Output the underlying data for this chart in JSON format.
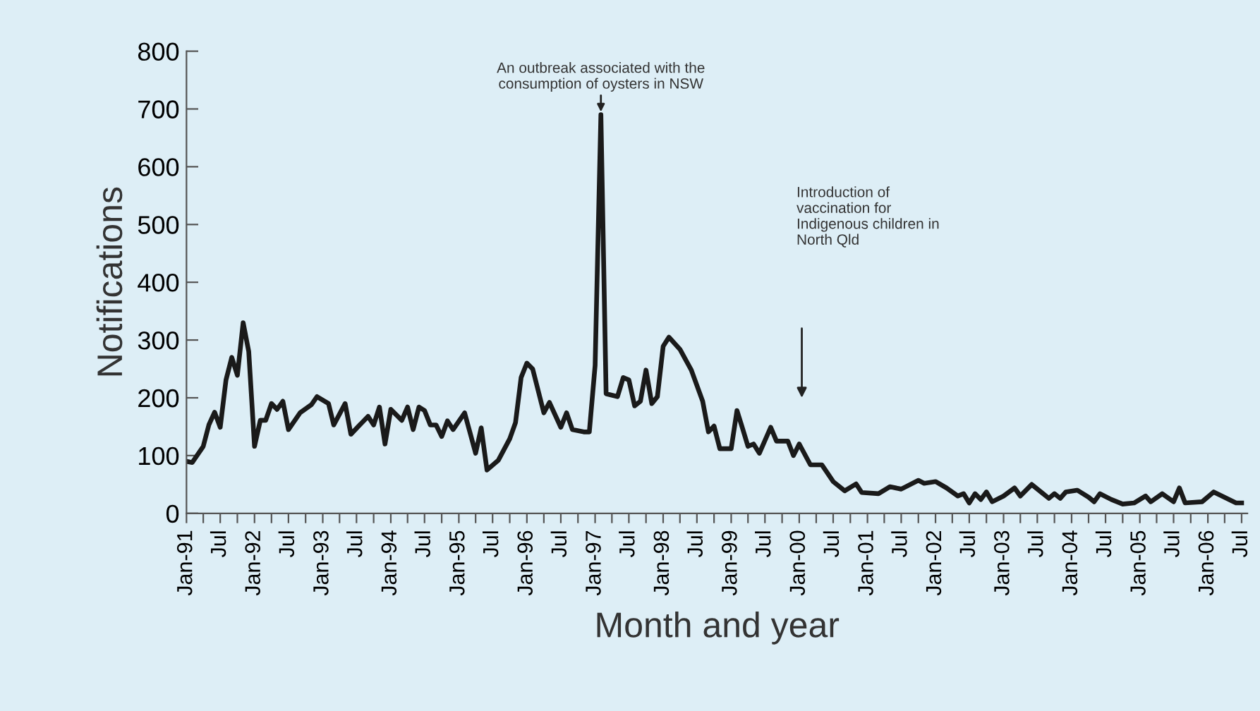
{
  "chart_data": {
    "type": "line",
    "xlabel": "Month and year",
    "ylabel": "Notifications",
    "annotations": [
      {
        "text": "An outbreak associated with the\nconsumption of oysters in NSW",
        "x": "1997-02",
        "y": 690
      },
      "Introduction of\nvaccination for\nIndigenous children in\nNorth Qld"
    ],
    "series": [
      {
        "color": "#1a1a1a",
        "x": [
          "1991-01",
          "1991-02",
          "1991-04",
          "1991-05",
          "1991-06",
          "1991-07",
          "1991-08",
          "1991-09",
          "1991-10",
          "1991-11",
          "1991-12",
          "1992-01",
          "1992-02",
          "1992-03",
          "1992-04",
          "1992-05",
          "1992-06",
          "1992-07",
          "1992-09",
          "1992-11",
          "1992-12",
          "1993-02",
          "1993-03",
          "1993-05",
          "1993-06",
          "1993-09",
          "1993-10",
          "1993-11",
          "1993-12",
          "1994-01",
          "1994-03",
          "1994-04",
          "1994-05",
          "1994-06",
          "1994-07",
          "1994-08",
          "1994-09",
          "1994-10",
          "1994-11",
          "1994-12",
          "1995-02",
          "1995-03",
          "1995-04",
          "1995-05",
          "1995-06",
          "1995-08",
          "1995-10",
          "1995-11",
          "1995-12",
          "1996-01",
          "1996-02",
          "1996-04",
          "1996-05",
          "1996-07",
          "1996-08",
          "1996-09",
          "1996-11",
          "1996-12",
          "1997-01",
          "1997-02",
          "1997-03",
          "1997-05",
          "1997-06",
          "1997-07",
          "1997-08",
          "1997-09",
          "1997-10",
          "1997-11",
          "1997-12",
          "1998-01",
          "1998-02",
          "1998-04",
          "1998-06",
          "1998-08",
          "1998-09",
          "1998-10",
          "1998-11",
          "1999-01",
          "1999-02",
          "1999-03",
          "1999-04",
          "1999-05",
          "1999-06",
          "1999-08",
          "1999-09",
          "1999-11",
          "1999-12",
          "2000-01",
          "2000-03",
          "2000-05",
          "2000-07",
          "2000-09",
          "2000-11",
          "2000-12",
          "2001-03",
          "2001-05",
          "2001-07",
          "2001-10",
          "2001-11",
          "2002-01",
          "2002-03",
          "2002-05",
          "2002-06",
          "2002-07",
          "2002-08",
          "2002-09",
          "2002-10",
          "2002-11",
          "2003-01",
          "2003-03",
          "2003-04",
          "2003-06",
          "2003-08",
          "2003-09",
          "2003-10",
          "2003-11",
          "2003-12",
          "2004-02",
          "2004-04",
          "2004-05",
          "2004-06",
          "2004-08",
          "2004-10",
          "2004-12",
          "2005-02",
          "2005-03",
          "2005-05",
          "2005-07",
          "2005-08",
          "2005-09",
          "2005-12",
          "2006-02",
          "2006-06",
          "2006-07"
        ],
        "values": [
          90,
          88,
          116,
          153,
          175,
          149,
          231,
          270,
          239,
          330,
          280,
          116,
          161,
          161,
          190,
          180,
          194,
          145,
          174,
          188,
          202,
          190,
          153,
          190,
          137,
          168,
          153,
          184,
          120,
          180,
          161,
          184,
          145,
          184,
          178,
          153,
          153,
          133,
          160,
          145,
          174,
          141,
          104,
          148,
          75,
          92,
          129,
          157,
          235,
          260,
          250,
          174,
          192,
          149,
          174,
          145,
          141,
          141,
          256,
          690,
          207,
          202,
          235,
          231,
          186,
          194,
          248,
          190,
          202,
          289,
          305,
          284,
          248,
          194,
          141,
          151,
          112,
          112,
          178,
          149,
          116,
          120,
          104,
          149,
          125,
          125,
          100,
          120,
          84,
          84,
          55,
          39,
          51,
          36,
          34,
          46,
          42,
          57,
          52,
          55,
          44,
          30,
          34,
          18,
          34,
          24,
          37,
          20,
          30,
          44,
          30,
          50,
          34,
          26,
          34,
          26,
          37,
          40,
          28,
          20,
          34,
          24,
          16,
          18,
          30,
          20,
          34,
          20,
          44,
          18,
          20,
          37,
          18,
          18
        ]
      }
    ],
    "xlim": [
      "1991-01",
      "2006-08"
    ],
    "xticks": [
      {
        "value": "1991-01",
        "label": "Jan-91"
      },
      {
        "value": "1991-04",
        "label": null
      },
      {
        "value": "1991-07",
        "label": "Jul"
      },
      {
        "value": "1991-10",
        "label": null
      },
      {
        "value": "1992-01",
        "label": "Jan-92"
      },
      {
        "value": "1992-04",
        "label": null
      },
      {
        "value": "1992-07",
        "label": "Jul"
      },
      {
        "value": "1992-10",
        "label": null
      },
      {
        "value": "1993-01",
        "label": "Jan-93"
      },
      {
        "value": "1993-04",
        "label": null
      },
      {
        "value": "1993-07",
        "label": "Jul"
      },
      {
        "value": "1993-10",
        "label": null
      },
      {
        "value": "1994-01",
        "label": "Jan-94"
      },
      {
        "value": "1994-04",
        "label": null
      },
      {
        "value": "1994-07",
        "label": "Jul"
      },
      {
        "value": "1994-10",
        "label": null
      },
      {
        "value": "1995-01",
        "label": "Jan-95"
      },
      {
        "value": "1995-04",
        "label": null
      },
      {
        "value": "1995-07",
        "label": "Jul"
      },
      {
        "value": "1995-10",
        "label": null
      },
      {
        "value": "1996-01",
        "label": "Jan-96"
      },
      {
        "value": "1996-04",
        "label": null
      },
      {
        "value": "1996-07",
        "label": "Jul"
      },
      {
        "value": "1996-10",
        "label": null
      },
      {
        "value": "1997-01",
        "label": "Jan-97"
      },
      {
        "value": "1997-04",
        "label": null
      },
      {
        "value": "1997-07",
        "label": "Jul"
      },
      {
        "value": "1997-10",
        "label": null
      },
      {
        "value": "1998-01",
        "label": "Jan-98"
      },
      {
        "value": "1998-04",
        "label": null
      },
      {
        "value": "1998-07",
        "label": "Jul"
      },
      {
        "value": "1998-10",
        "label": null
      },
      {
        "value": "1999-01",
        "label": "Jan-99"
      },
      {
        "value": "1999-04",
        "label": null
      },
      {
        "value": "1999-07",
        "label": "Jul"
      },
      {
        "value": "1999-10",
        "label": null
      },
      {
        "value": "2000-01",
        "label": "Jan-00"
      },
      {
        "value": "2000-04",
        "label": null
      },
      {
        "value": "2000-07",
        "label": "Jul"
      },
      {
        "value": "2000-10",
        "label": null
      },
      {
        "value": "2001-01",
        "label": "Jan-01"
      },
      {
        "value": "2001-04",
        "label": null
      },
      {
        "value": "2001-07",
        "label": "Jul"
      },
      {
        "value": "2001-10",
        "label": null
      },
      {
        "value": "2002-01",
        "label": "Jan-02"
      },
      {
        "value": "2002-04",
        "label": null
      },
      {
        "value": "2002-07",
        "label": "Jul"
      },
      {
        "value": "2002-10",
        "label": null
      },
      {
        "value": "2003-01",
        "label": "Jan-03"
      },
      {
        "value": "2003-04",
        "label": null
      },
      {
        "value": "2003-07",
        "label": "Jul"
      },
      {
        "value": "2003-10",
        "label": null
      },
      {
        "value": "2004-01",
        "label": "Jan-04"
      },
      {
        "value": "2004-04",
        "label": null
      },
      {
        "value": "2004-07",
        "label": "Jul"
      },
      {
        "value": "2004-10",
        "label": null
      },
      {
        "value": "2005-01",
        "label": "Jan-05"
      },
      {
        "value": "2005-04",
        "label": null
      },
      {
        "value": "2005-07",
        "label": "Jul"
      },
      {
        "value": "2005-10",
        "label": null
      },
      {
        "value": "2006-01",
        "label": "Jan-06"
      },
      {
        "value": "2006-04",
        "label": null
      },
      {
        "value": "2006-07",
        "label": "Jul"
      }
    ],
    "ylim": [
      0,
      800
    ],
    "yticks": [
      0,
      100,
      200,
      300,
      400,
      500,
      600,
      700,
      800
    ],
    "grid": false,
    "legend": false,
    "marker": "none",
    "line_style": "solid"
  }
}
